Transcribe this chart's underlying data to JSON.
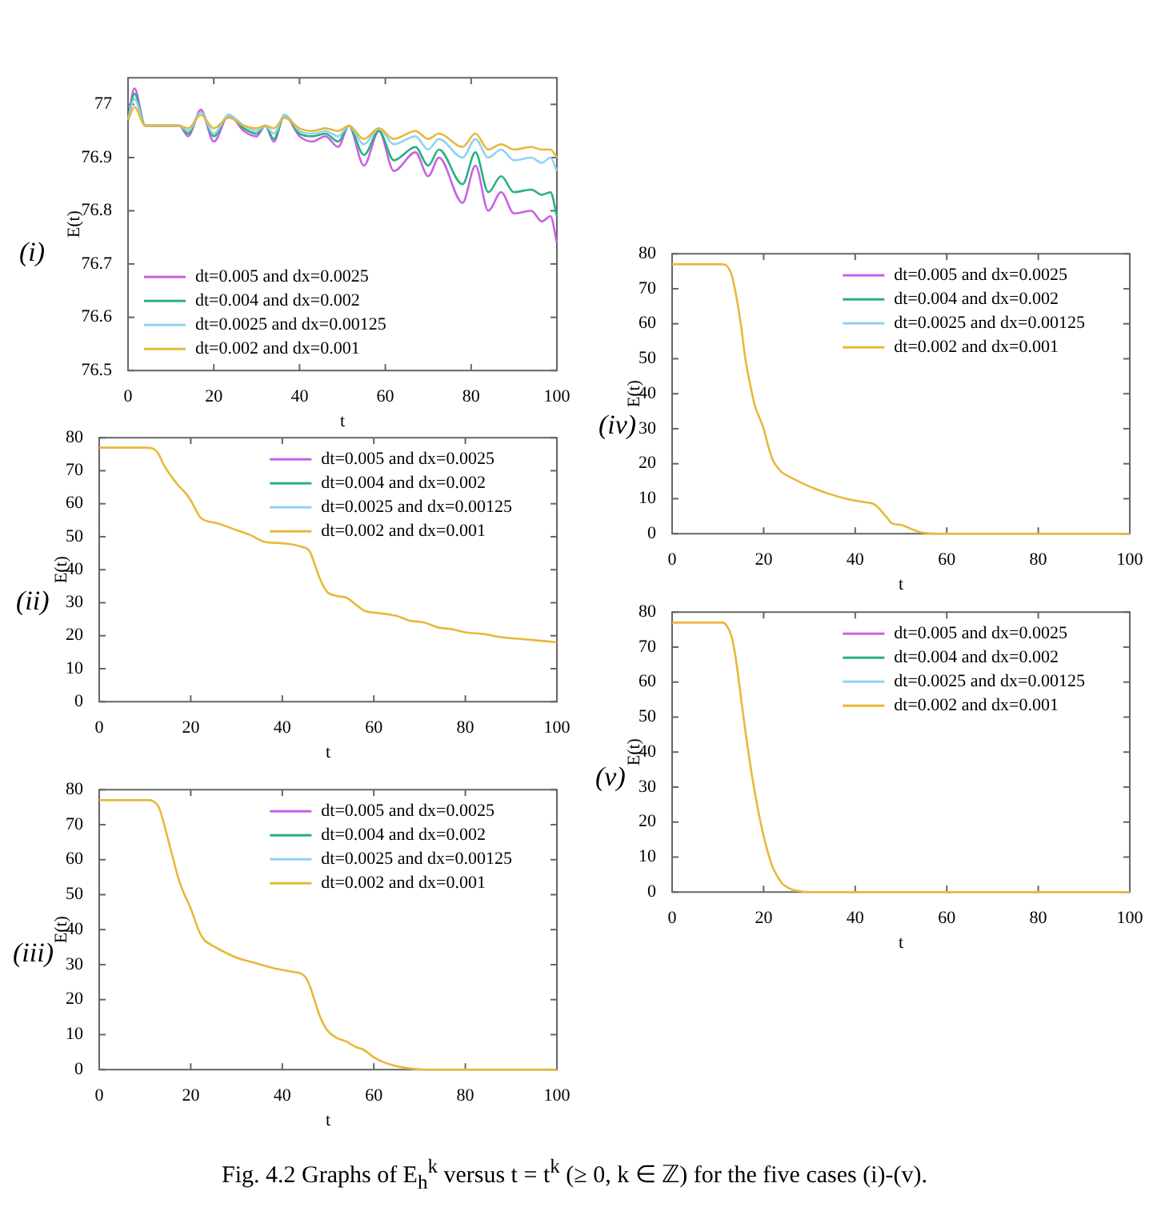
{
  "chart_data": [
    {
      "type": "line",
      "title": "(i)",
      "xlabel": "t",
      "ylabel": "E(t)",
      "xlim": [
        0,
        100
      ],
      "xticks": [
        0,
        20,
        40,
        60,
        80,
        100
      ],
      "ylim": [
        76.5,
        77.05
      ],
      "yticks": [
        76.5,
        76.6,
        76.7,
        76.8,
        76.9,
        77
      ],
      "legend": "bottom left",
      "x": [
        0,
        1.5,
        4,
        12,
        14,
        17,
        20,
        23.5,
        27,
        30,
        32,
        34,
        36.5,
        40,
        43,
        46,
        49,
        51.5,
        55,
        58.5,
        62,
        67,
        70,
        72.5,
        78,
        81,
        84,
        87,
        90,
        94,
        96.5,
        98.5,
        100
      ],
      "series": [
        {
          "name": "dt=0.005 and dx=0.0025",
          "color": "#c862e6",
          "values": [
            76.97,
            77.03,
            76.96,
            76.96,
            76.94,
            76.99,
            76.93,
            76.98,
            76.95,
            76.94,
            76.96,
            76.93,
            76.98,
            76.94,
            76.93,
            76.94,
            76.92,
            76.96,
            76.885,
            76.95,
            76.875,
            76.91,
            76.865,
            76.9,
            76.815,
            76.885,
            76.8,
            76.835,
            76.795,
            76.8,
            76.78,
            76.79,
            76.74
          ]
        },
        {
          "name": "dt=0.004 and dx=0.002",
          "color": "#2ab07f",
          "values": [
            76.97,
            77.02,
            76.96,
            76.96,
            76.945,
            76.985,
            76.94,
            76.98,
            76.955,
            76.945,
            76.96,
            76.935,
            76.98,
            76.945,
            76.94,
            76.945,
            76.93,
            76.96,
            76.905,
            76.95,
            76.895,
            76.92,
            76.885,
            76.915,
            76.85,
            76.91,
            76.835,
            76.865,
            76.835,
            76.84,
            76.83,
            76.835,
            76.79
          ]
        },
        {
          "name": "dt=0.0025 and dx=0.00125",
          "color": "#8fd3f0",
          "values": [
            76.97,
            77.01,
            76.96,
            76.96,
            76.95,
            76.985,
            76.945,
            76.98,
            76.96,
            76.95,
            76.96,
            76.945,
            76.98,
            76.95,
            76.945,
            76.95,
            76.94,
            76.96,
            76.925,
            76.955,
            76.925,
            76.94,
            76.915,
            76.935,
            76.9,
            76.935,
            76.9,
            76.915,
            76.895,
            76.9,
            76.89,
            76.9,
            76.875
          ]
        },
        {
          "name": "dt=0.002 and dx=0.001",
          "color": "#e8b83a",
          "values": [
            76.97,
            76.995,
            76.96,
            76.96,
            76.955,
            76.98,
            76.955,
            76.975,
            76.96,
            76.955,
            76.96,
            76.955,
            76.975,
            76.955,
            76.95,
            76.955,
            76.95,
            76.96,
            76.935,
            76.955,
            76.935,
            76.95,
            76.935,
            76.945,
            76.92,
            76.945,
            76.915,
            76.925,
            76.915,
            76.92,
            76.915,
            76.915,
            76.9
          ]
        }
      ]
    },
    {
      "type": "line",
      "title": "(ii)",
      "xlabel": "t",
      "ylabel": "E(t)",
      "xlim": [
        0,
        100
      ],
      "xticks": [
        0,
        20,
        40,
        60,
        80,
        100
      ],
      "ylim": [
        0,
        80
      ],
      "yticks": [
        0,
        10,
        20,
        30,
        40,
        50,
        60,
        70,
        80
      ],
      "legend": "top right",
      "x": [
        0,
        10,
        12,
        13,
        14,
        17,
        19,
        20,
        22,
        23,
        26,
        30,
        33,
        36,
        40,
        44,
        46,
        47,
        48,
        49,
        50,
        52,
        54,
        56,
        58,
        60,
        63,
        65,
        68,
        71,
        74,
        77,
        80,
        84,
        88,
        92,
        96,
        100
      ],
      "series": [
        {
          "name": "dt=0.005 and dx=0.0025",
          "color": "#c862e6",
          "values": [
            null,
            null,
            null,
            null,
            null,
            null,
            null,
            null,
            null,
            null,
            null,
            null,
            null,
            null,
            null,
            null,
            null,
            null,
            null,
            null,
            null,
            null,
            null,
            null,
            null,
            null,
            null,
            null,
            null,
            null,
            null,
            null,
            null,
            null,
            null,
            null,
            null,
            null
          ]
        },
        {
          "name": "dt=0.004 and dx=0.002",
          "color": "#2ab07f",
          "values": [
            null,
            null,
            null,
            null,
            null,
            null,
            null,
            null,
            null,
            null,
            null,
            null,
            null,
            null,
            null,
            null,
            null,
            null,
            null,
            null,
            null,
            null,
            null,
            null,
            null,
            null,
            null,
            null,
            null,
            null,
            null,
            null,
            null,
            null,
            null,
            null,
            null,
            null
          ]
        },
        {
          "name": "dt=0.0025 and dx=0.00125",
          "color": "#8fd3f0",
          "values": [
            null,
            null,
            null,
            null,
            null,
            null,
            null,
            null,
            null,
            null,
            null,
            null,
            null,
            null,
            null,
            null,
            null,
            null,
            null,
            null,
            null,
            null,
            null,
            null,
            null,
            null,
            null,
            null,
            null,
            null,
            null,
            null,
            null,
            null,
            null,
            null,
            null,
            null
          ]
        },
        {
          "name": "dt=0.002 and dx=0.001",
          "color": "#e8b83a",
          "values": [
            77,
            77,
            76.5,
            75,
            72,
            66,
            63,
            61,
            56,
            55,
            54,
            52,
            50.5,
            48.5,
            48,
            47,
            45.5,
            42,
            38,
            35,
            33,
            32,
            31.5,
            29.5,
            27.5,
            27,
            26.5,
            26,
            24.5,
            24,
            22.5,
            22,
            21,
            20.5,
            19.5,
            19,
            18.5,
            18
          ]
        }
      ]
    },
    {
      "type": "line",
      "title": "(iii)",
      "xlabel": "t",
      "ylabel": "E(t)",
      "xlim": [
        0,
        100
      ],
      "xticks": [
        0,
        20,
        40,
        60,
        80,
        100
      ],
      "ylim": [
        0,
        80
      ],
      "yticks": [
        0,
        10,
        20,
        30,
        40,
        50,
        60,
        70,
        80
      ],
      "legend": "top right",
      "x": [
        0,
        11,
        12,
        13,
        14,
        15,
        16,
        17,
        18,
        20,
        22,
        23,
        24,
        26,
        30,
        34,
        38,
        42,
        44,
        45,
        46,
        47,
        48,
        49,
        50,
        52,
        54,
        56,
        58,
        60,
        62,
        64,
        66,
        68,
        70,
        72,
        80,
        100
      ],
      "series": [
        {
          "name": "dt=0.005 and dx=0.0025",
          "color": "#c862e6",
          "values": [
            null,
            null,
            null,
            null,
            null,
            null,
            null,
            null,
            null,
            null,
            null,
            null,
            null,
            null,
            null,
            null,
            null,
            null,
            null,
            null,
            null,
            null,
            null,
            null,
            null,
            null,
            null,
            null,
            null,
            null,
            null,
            null,
            null,
            null,
            null,
            null,
            null,
            null
          ]
        },
        {
          "name": "dt=0.004 and dx=0.002",
          "color": "#2ab07f",
          "values": [
            null,
            null,
            null,
            null,
            null,
            null,
            null,
            null,
            null,
            null,
            null,
            null,
            null,
            null,
            null,
            null,
            null,
            null,
            null,
            null,
            null,
            null,
            null,
            null,
            null,
            null,
            null,
            null,
            null,
            null,
            null,
            null,
            null,
            null,
            null,
            null,
            null,
            null
          ]
        },
        {
          "name": "dt=0.0025 and dx=0.00125",
          "color": "#8fd3f0",
          "values": [
            null,
            null,
            null,
            null,
            null,
            null,
            null,
            null,
            null,
            null,
            null,
            null,
            null,
            null,
            null,
            null,
            null,
            null,
            null,
            null,
            null,
            null,
            null,
            null,
            null,
            null,
            null,
            null,
            null,
            null,
            null,
            null,
            null,
            null,
            null,
            null,
            null,
            null
          ]
        },
        {
          "name": "dt=0.002 and dx=0.001",
          "color": "#e8b83a",
          "values": [
            77,
            77,
            76.5,
            75,
            71,
            66,
            61,
            56,
            52,
            46,
            39,
            37,
            36,
            34.5,
            32,
            30.5,
            29,
            28,
            27.5,
            26.5,
            24,
            20,
            16,
            13,
            11,
            9,
            8,
            6.5,
            5.5,
            3.5,
            2.2,
            1.3,
            0.7,
            0.3,
            0.1,
            0,
            0,
            0
          ]
        }
      ]
    },
    {
      "type": "line",
      "title": "(iv)",
      "xlabel": "t",
      "ylabel": "E(t)",
      "xlim": [
        0,
        100
      ],
      "xticks": [
        0,
        20,
        40,
        60,
        80,
        100
      ],
      "ylim": [
        0,
        80
      ],
      "yticks": [
        0,
        10,
        20,
        30,
        40,
        50,
        60,
        70,
        80
      ],
      "legend": "top right",
      "x": [
        0,
        11,
        12,
        13,
        14,
        15,
        16,
        17,
        18,
        20,
        21,
        22,
        23,
        24,
        26,
        30,
        34,
        38,
        42,
        44,
        45,
        46,
        47,
        48,
        50,
        52,
        54,
        56,
        58,
        100
      ],
      "series": [
        {
          "name": "dt=0.005 and dx=0.0025",
          "color": "#c862e6",
          "values": [
            null,
            null,
            null,
            null,
            null,
            null,
            null,
            null,
            null,
            null,
            null,
            null,
            null,
            null,
            null,
            null,
            null,
            null,
            null,
            null,
            null,
            null,
            null,
            null,
            null,
            null,
            null,
            null,
            null,
            null
          ]
        },
        {
          "name": "dt=0.004 and dx=0.002",
          "color": "#2ab07f",
          "values": [
            null,
            null,
            null,
            null,
            null,
            null,
            null,
            null,
            null,
            null,
            null,
            null,
            null,
            null,
            null,
            null,
            null,
            null,
            null,
            null,
            null,
            null,
            null,
            null,
            null,
            null,
            null,
            null,
            null,
            null
          ]
        },
        {
          "name": "dt=0.0025 and dx=0.00125",
          "color": "#8fd3f0",
          "values": [
            null,
            null,
            null,
            null,
            null,
            null,
            null,
            null,
            null,
            null,
            null,
            null,
            null,
            null,
            null,
            null,
            null,
            null,
            null,
            null,
            null,
            null,
            null,
            null,
            null,
            null,
            null,
            null,
            null,
            null
          ]
        },
        {
          "name": "dt=0.002 and dx=0.001",
          "color": "#e8b83a",
          "values": [
            77,
            77,
            76.5,
            74,
            68,
            60,
            50,
            43,
            37,
            30,
            25,
            21,
            19,
            17.5,
            16,
            13.5,
            11.5,
            10,
            9,
            8.5,
            7.5,
            6,
            4.5,
            3,
            2.5,
            1.5,
            0.5,
            0.1,
            0,
            0
          ]
        }
      ]
    },
    {
      "type": "line",
      "title": "(v)",
      "xlabel": "t",
      "ylabel": "E(t)",
      "xlim": [
        0,
        100
      ],
      "xticks": [
        0,
        20,
        40,
        60,
        80,
        100
      ],
      "ylim": [
        0,
        80
      ],
      "yticks": [
        0,
        10,
        20,
        30,
        40,
        50,
        60,
        70,
        80
      ],
      "legend": "top right",
      "x": [
        0,
        11,
        12,
        13,
        14,
        15,
        16,
        17,
        18,
        19,
        20,
        21,
        22,
        23,
        24,
        25,
        26,
        28,
        30,
        100
      ],
      "series": [
        {
          "name": "dt=0.005 and dx=0.0025",
          "color": "#c862e6",
          "values": [
            null,
            null,
            null,
            null,
            null,
            null,
            null,
            null,
            null,
            null,
            null,
            null,
            null,
            null,
            null,
            null,
            null,
            null,
            null,
            null
          ]
        },
        {
          "name": "dt=0.004 and dx=0.002",
          "color": "#2ab07f",
          "values": [
            null,
            null,
            null,
            null,
            null,
            null,
            null,
            null,
            null,
            null,
            null,
            null,
            null,
            null,
            null,
            null,
            null,
            null,
            null,
            null
          ]
        },
        {
          "name": "dt=0.0025 and dx=0.00125",
          "color": "#8fd3f0",
          "values": [
            null,
            null,
            null,
            null,
            null,
            null,
            null,
            null,
            null,
            null,
            null,
            null,
            null,
            null,
            null,
            null,
            null,
            null,
            null,
            null
          ]
        },
        {
          "name": "dt=0.002 and dx=0.001",
          "color": "#e8b83a",
          "values": [
            77,
            77,
            76,
            73,
            66,
            56,
            46,
            37,
            29,
            22,
            16,
            11,
            7,
            4.5,
            2.5,
            1.5,
            0.8,
            0.2,
            0,
            0
          ]
        }
      ],
      "annotations": [
        "Fig. 4.2 Graphs of E$_{h}$$^{k}$  versus t = t$^{k}$ (≥ 0, k ∈ ℤ) for the five cases (i)-(v)."
      ]
    }
  ]
}
